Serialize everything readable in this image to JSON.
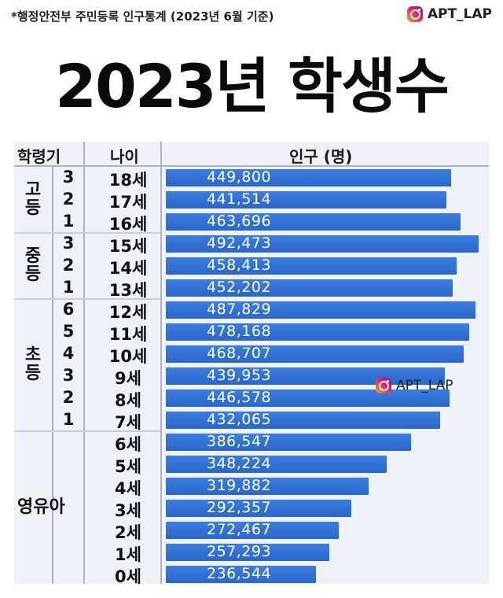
{
  "source_note": "*행정안전부 주민등록 인구통계 (2023년 6월 기준)",
  "brand": {
    "handle": "APT_LAP",
    "icon": "instagram-icon"
  },
  "title": "2023년 학생수",
  "headers": {
    "grade": "학령기",
    "age": "나이",
    "population": "인구 (명)"
  },
  "groups": [
    {
      "label": "고\n등",
      "rows": 3
    },
    {
      "label": "중\n등",
      "rows": 3
    },
    {
      "label": "초\n등",
      "rows": 6
    },
    {
      "label": "영유아",
      "rows": 7
    }
  ],
  "chart_data": {
    "type": "bar",
    "title": "2023년 학생수",
    "xlabel": "",
    "ylabel": "인구 (명)",
    "orientation": "horizontal",
    "xlim": [
      0,
      500000
    ],
    "rows": [
      {
        "group": "고등",
        "grade": "3",
        "age": "18세",
        "value": 449800,
        "label": "449,800"
      },
      {
        "group": "고등",
        "grade": "2",
        "age": "17세",
        "value": 441514,
        "label": "441,514"
      },
      {
        "group": "고등",
        "grade": "1",
        "age": "16세",
        "value": 463696,
        "label": "463,696"
      },
      {
        "group": "중등",
        "grade": "3",
        "age": "15세",
        "value": 492473,
        "label": "492,473"
      },
      {
        "group": "중등",
        "grade": "2",
        "age": "14세",
        "value": 458413,
        "label": "458,413"
      },
      {
        "group": "중등",
        "grade": "1",
        "age": "13세",
        "value": 452202,
        "label": "452,202"
      },
      {
        "group": "초등",
        "grade": "6",
        "age": "12세",
        "value": 487829,
        "label": "487,829"
      },
      {
        "group": "초등",
        "grade": "5",
        "age": "11세",
        "value": 478168,
        "label": "478,168"
      },
      {
        "group": "초등",
        "grade": "4",
        "age": "10세",
        "value": 468707,
        "label": "468,707"
      },
      {
        "group": "초등",
        "grade": "3",
        "age": "9세",
        "value": 439953,
        "label": "439,953"
      },
      {
        "group": "초등",
        "grade": "2",
        "age": "8세",
        "value": 446578,
        "label": "446,578"
      },
      {
        "group": "초등",
        "grade": "1",
        "age": "7세",
        "value": 432065,
        "label": "432,065"
      },
      {
        "group": "영유아",
        "grade": "",
        "age": "6세",
        "value": 386547,
        "label": "386,547"
      },
      {
        "group": "영유아",
        "grade": "",
        "age": "5세",
        "value": 348224,
        "label": "348,224"
      },
      {
        "group": "영유아",
        "grade": "",
        "age": "4세",
        "value": 319882,
        "label": "319,882"
      },
      {
        "group": "영유아",
        "grade": "",
        "age": "3세",
        "value": 292357,
        "label": "292,357"
      },
      {
        "group": "영유아",
        "grade": "",
        "age": "2세",
        "value": 272467,
        "label": "272,467"
      },
      {
        "group": "영유아",
        "grade": "",
        "age": "1세",
        "value": 257293,
        "label": "257,293"
      },
      {
        "group": "영유아",
        "grade": "",
        "age": "0세",
        "value": 236544,
        "label": "236,544"
      }
    ],
    "colors": {
      "bar": "#2f6fd6",
      "bar_text": "#ffffff",
      "table_bg": "#eef1f7"
    }
  }
}
